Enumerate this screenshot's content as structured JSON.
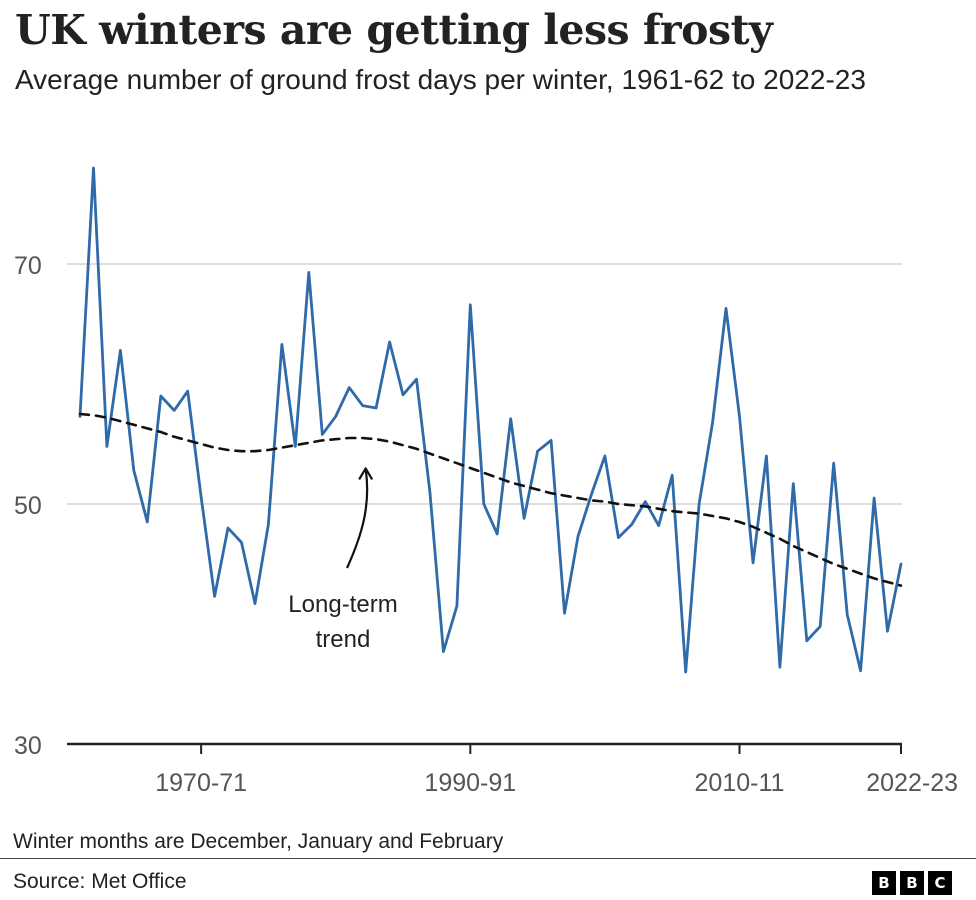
{
  "header": {
    "title": "UK winters are getting less frosty",
    "subtitle": "Average number of ground frost days per winter, 1961-62 to 2022-23"
  },
  "footer": {
    "note": "Winter months are December, January and February",
    "source": "Source: Met Office",
    "logo_letters": [
      "B",
      "B",
      "C"
    ]
  },
  "colors": {
    "series": "#2f6aa9",
    "trend": "#111111",
    "grid": "#cccccc",
    "axis": "#222222",
    "tick_label": "#555555"
  },
  "chart_data": {
    "type": "line",
    "x_start_year": 1961,
    "xlim": [
      1961,
      2022
    ],
    "ylim": [
      30,
      70
    ],
    "y_ticks": [
      30,
      50,
      70
    ],
    "x_ticks": [
      {
        "start_year": 1970,
        "label": "1970-71"
      },
      {
        "start_year": 1990,
        "label": "1990-91"
      },
      {
        "start_year": 2010,
        "label": "2010-11"
      },
      {
        "start_year": 2022,
        "label": "2022-23"
      }
    ],
    "grid": "horizontal",
    "annotation": {
      "text": [
        "Long-term",
        "trend"
      ],
      "target_year": 1982,
      "target_value": 53.8
    },
    "series": [
      {
        "name": "",
        "style": "solid",
        "values": [
          57.3,
          78.0,
          54.8,
          62.8,
          52.8,
          48.5,
          59.0,
          57.8,
          59.4,
          50.6,
          42.3,
          48.0,
          46.8,
          41.7,
          48.3,
          63.3,
          54.8,
          69.3,
          55.8,
          57.3,
          59.7,
          58.2,
          58.0,
          63.5,
          59.1,
          60.4,
          51.0,
          37.7,
          41.5,
          66.6,
          50.0,
          47.5,
          57.1,
          48.8,
          54.4,
          55.3,
          40.9,
          47.3,
          50.8,
          54.0,
          47.2,
          48.3,
          50.2,
          48.2,
          52.4,
          36.0,
          50.0,
          56.8,
          66.3,
          57.3,
          45.1,
          54.0,
          36.4,
          51.7,
          38.6,
          39.8,
          53.4,
          40.8,
          36.1,
          50.5,
          39.4,
          45.0
        ]
      },
      {
        "name": "Long-term trend",
        "style": "dashed",
        "values": [
          57.5,
          57.4,
          57.2,
          56.9,
          56.6,
          56.3,
          56.0,
          55.6,
          55.3,
          55.0,
          54.7,
          54.5,
          54.4,
          54.4,
          54.5,
          54.7,
          54.9,
          55.1,
          55.3,
          55.4,
          55.5,
          55.5,
          55.4,
          55.2,
          54.9,
          54.6,
          54.2,
          53.8,
          53.4,
          53.0,
          52.6,
          52.2,
          51.8,
          51.5,
          51.2,
          50.9,
          50.7,
          50.5,
          50.3,
          50.2,
          50.0,
          49.9,
          49.8,
          49.6,
          49.4,
          49.3,
          49.2,
          49.0,
          48.8,
          48.5,
          48.1,
          47.6,
          47.1,
          46.5,
          46.0,
          45.5,
          45.0,
          44.6,
          44.2,
          43.8,
          43.5,
          43.2
        ]
      }
    ]
  }
}
